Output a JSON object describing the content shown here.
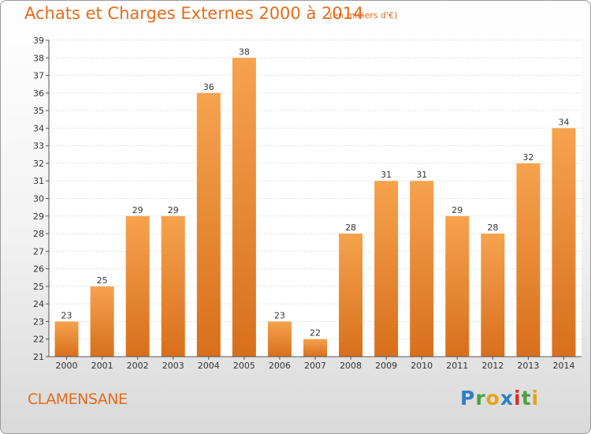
{
  "header": {
    "title": "Achats et Charges Externes 2000 à 2014",
    "subtitle": "(en milliers d'€)"
  },
  "footer": {
    "commune": "CLAMENSANE",
    "logo_letters": [
      {
        "ch": "P",
        "color": "#2f7fc1"
      },
      {
        "ch": "r",
        "color": "#4aa23d"
      },
      {
        "ch": "o",
        "color": "#e8a21a"
      },
      {
        "ch": "x",
        "color": "#2f7fc1"
      },
      {
        "ch": "i",
        "color": "#d9302a"
      },
      {
        "ch": "t",
        "color": "#4aa23d"
      },
      {
        "ch": "i",
        "color": "#e8a21a"
      }
    ]
  },
  "chart_data": {
    "type": "bar",
    "title": "Achats et Charges Externes 2000 à 2014",
    "subtitle": "(en milliers d'€)",
    "categories": [
      "2000",
      "2001",
      "2002",
      "2003",
      "2004",
      "2005",
      "2006",
      "2007",
      "2008",
      "2009",
      "2010",
      "2011",
      "2012",
      "2013",
      "2014"
    ],
    "values": [
      23,
      25,
      29,
      29,
      36,
      38,
      23,
      22,
      28,
      31,
      31,
      29,
      28,
      32,
      34
    ],
    "ylim": [
      21,
      39
    ],
    "yticks": [
      21,
      22,
      23,
      24,
      25,
      26,
      27,
      28,
      29,
      30,
      31,
      32,
      33,
      34,
      35,
      36,
      37,
      38,
      39
    ],
    "grid": true,
    "bar_color_top": "#f6a34e",
    "bar_color_bottom": "#d86f1c",
    "text_color": "#e36c1a"
  }
}
